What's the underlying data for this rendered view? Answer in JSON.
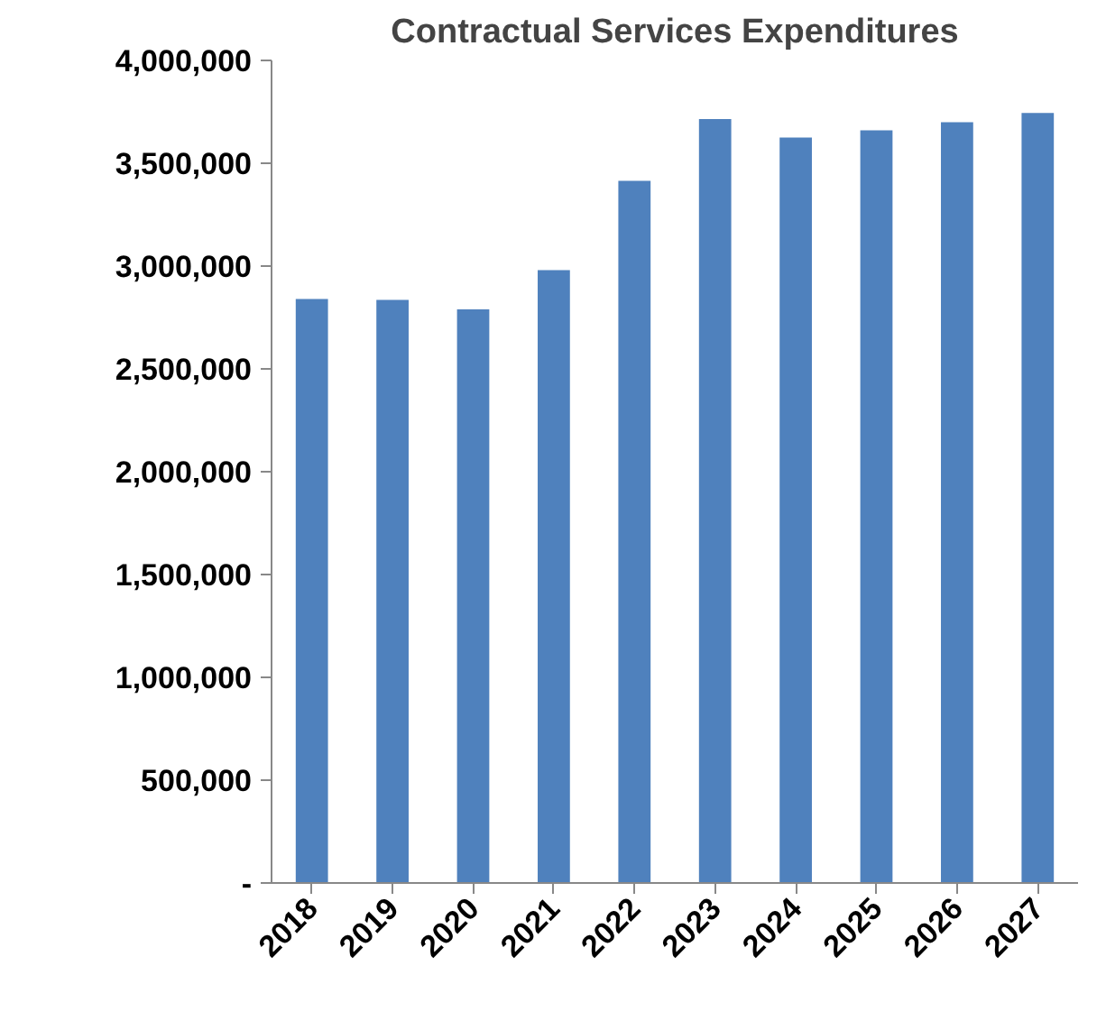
{
  "chart_data": {
    "type": "bar",
    "title": "Contractual Services Expenditures",
    "categories": [
      "2018",
      "2019",
      "2020",
      "2021",
      "2022",
      "2023",
      "2024",
      "2025",
      "2026",
      "2027"
    ],
    "values": [
      2840000,
      2835000,
      2790000,
      2980000,
      3415000,
      3715000,
      3625000,
      3660000,
      3700000,
      3745000
    ],
    "color": "#4f81bd",
    "ylim": [
      0,
      4000000
    ],
    "yticks": [
      {
        "value": 0,
        "label": "-"
      },
      {
        "value": 500000,
        "label": "500,000"
      },
      {
        "value": 1000000,
        "label": "1,000,000"
      },
      {
        "value": 1500000,
        "label": "1,500,000"
      },
      {
        "value": 2000000,
        "label": "2,000,000"
      },
      {
        "value": 2500000,
        "label": "2,500,000"
      },
      {
        "value": 3000000,
        "label": "3,000,000"
      },
      {
        "value": 3500000,
        "label": "3,500,000"
      },
      {
        "value": 4000000,
        "label": "4,000,000"
      }
    ],
    "grid": false
  }
}
